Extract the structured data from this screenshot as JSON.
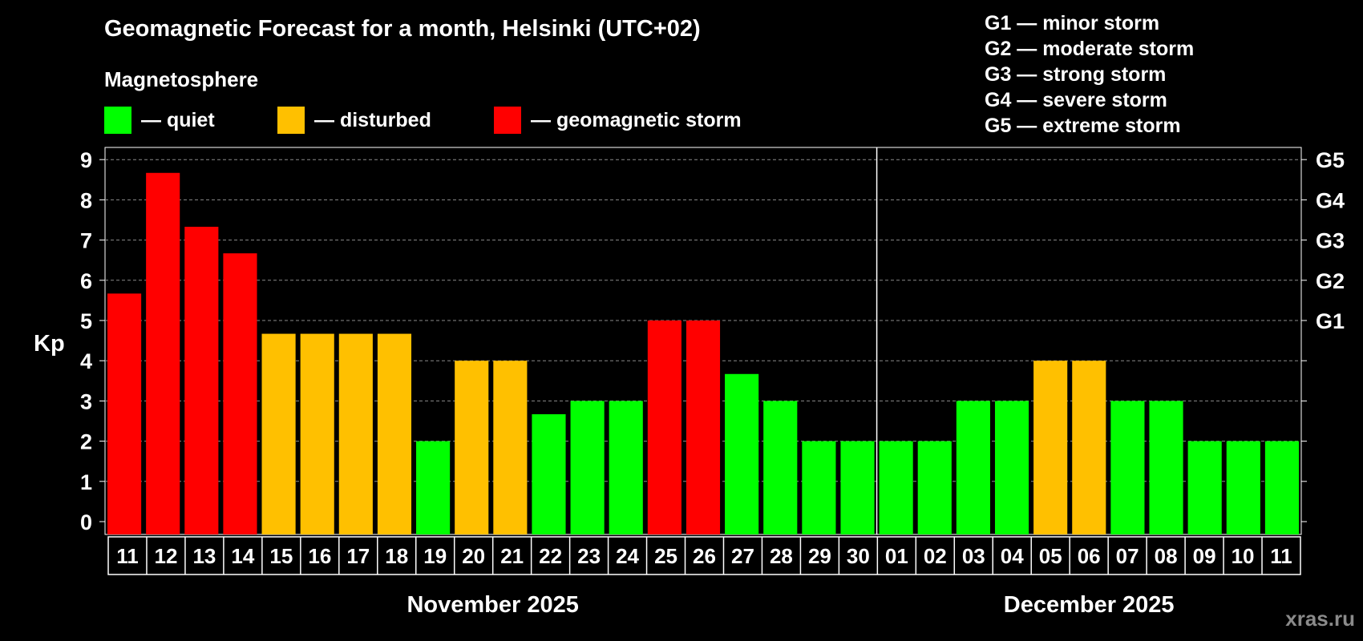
{
  "title": "Geomagnetic Forecast for a month, Helsinki (UTC+02)",
  "subtitle": "Magnetosphere",
  "legend": [
    {
      "label": "— quiet",
      "color": "#00ff00"
    },
    {
      "label": "— disturbed",
      "color": "#ffc000"
    },
    {
      "label": "— geomagnetic storm",
      "color": "#ff0000"
    }
  ],
  "g_legend": [
    "G1 — minor storm",
    "G2 — moderate storm",
    "G3 — strong storm",
    "G4 — severe storm",
    "G5 — extreme storm"
  ],
  "watermark": "xras.ru",
  "colors": {
    "quiet": "#00ff00",
    "disturbed": "#ffc000",
    "storm": "#ff0000"
  },
  "chart_data": {
    "type": "bar",
    "ylabel": "Kp",
    "ylim": [
      0,
      9
    ],
    "yticks": [
      0,
      1,
      2,
      3,
      4,
      5,
      6,
      7,
      8,
      9
    ],
    "grid": true,
    "right_axis": [
      {
        "value": 5,
        "label": "G1"
      },
      {
        "value": 6,
        "label": "G2"
      },
      {
        "value": 7,
        "label": "G3"
      },
      {
        "value": 8,
        "label": "G4"
      },
      {
        "value": 9,
        "label": "G5"
      }
    ],
    "categories": [
      "11",
      "12",
      "13",
      "14",
      "15",
      "16",
      "17",
      "18",
      "19",
      "20",
      "21",
      "22",
      "23",
      "24",
      "25",
      "26",
      "27",
      "28",
      "29",
      "30",
      "01",
      "02",
      "03",
      "04",
      "05",
      "06",
      "07",
      "08",
      "09",
      "10",
      "11"
    ],
    "values": [
      5.67,
      8.67,
      7.33,
      6.67,
      4.67,
      4.67,
      4.67,
      4.67,
      2,
      4,
      4,
      2.67,
      3,
      3,
      5,
      5,
      3.67,
      3,
      2,
      2,
      2,
      2,
      3,
      3,
      4,
      4,
      3,
      3,
      2,
      2,
      2
    ],
    "levels": [
      "storm",
      "storm",
      "storm",
      "storm",
      "disturbed",
      "disturbed",
      "disturbed",
      "disturbed",
      "quiet",
      "disturbed",
      "disturbed",
      "quiet",
      "quiet",
      "quiet",
      "storm",
      "storm",
      "quiet",
      "quiet",
      "quiet",
      "quiet",
      "quiet",
      "quiet",
      "quiet",
      "quiet",
      "disturbed",
      "disturbed",
      "quiet",
      "quiet",
      "quiet",
      "quiet",
      "quiet"
    ],
    "months": [
      {
        "label": "November 2025",
        "start": 0,
        "end": 19
      },
      {
        "label": "December 2025",
        "start": 20,
        "end": 30
      }
    ]
  }
}
